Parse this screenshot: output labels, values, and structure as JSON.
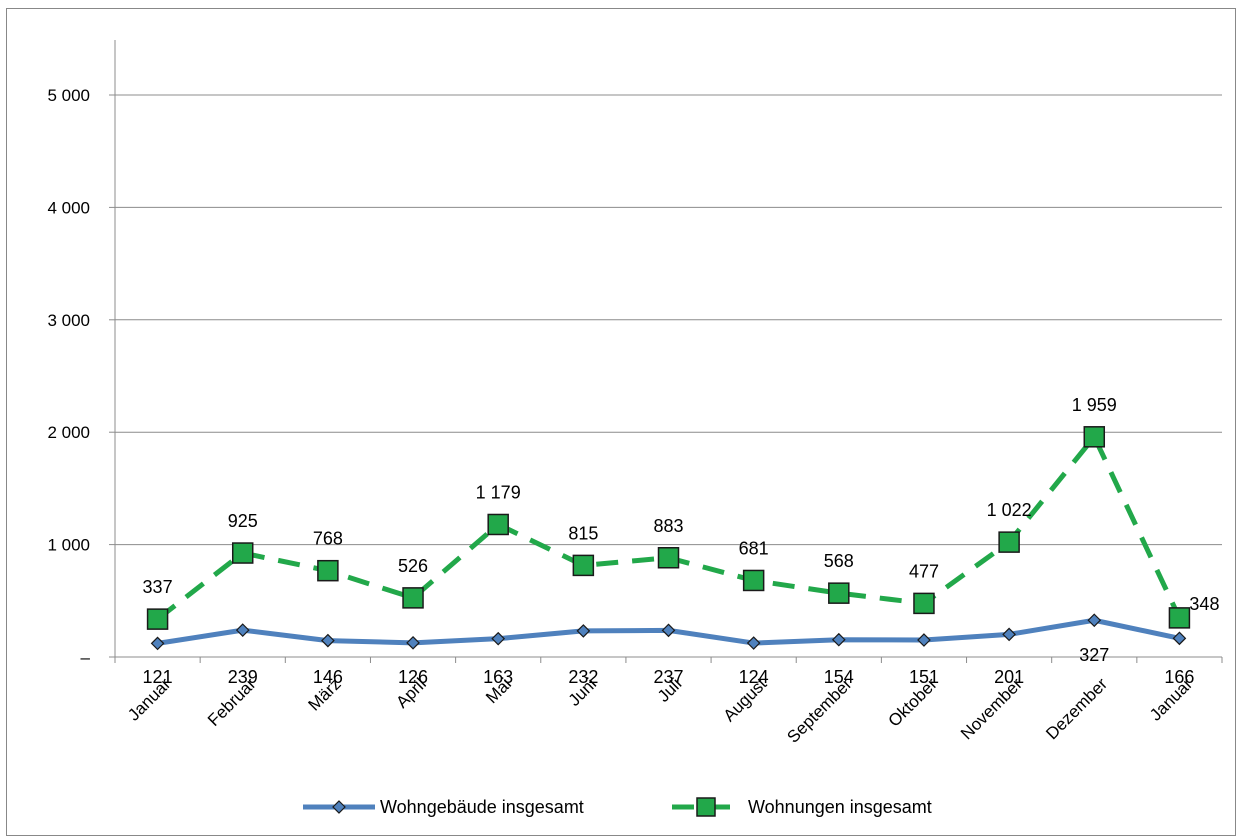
{
  "chart_data": {
    "type": "line",
    "categories": [
      "Januar",
      "Februar",
      "März",
      "April",
      "Mai",
      "Juni",
      "Juli",
      "August",
      "September",
      "Oktober",
      "November",
      "Dezember",
      "Januar"
    ],
    "series": [
      {
        "name": "Wohngebäude insgesamt",
        "values": [
          121,
          239,
          146,
          126,
          163,
          232,
          237,
          124,
          154,
          151,
          201,
          327,
          166
        ],
        "labels": [
          "121",
          "239",
          "146",
          "126",
          "163",
          "232",
          "237",
          "124",
          "154",
          "151",
          "201",
          "327",
          "166"
        ],
        "color": "#4f81bd",
        "marker": "diamond",
        "line_style": "solid"
      },
      {
        "name": "Wohnungen insgesamt",
        "values": [
          337,
          925,
          768,
          526,
          1179,
          815,
          883,
          681,
          568,
          477,
          1022,
          1959,
          348
        ],
        "labels": [
          "337",
          "925",
          "768",
          "526",
          "1 179",
          "815",
          "883",
          "681",
          "568",
          "477",
          "1 022",
          "1 959",
          "348"
        ],
        "color": "#22a84a",
        "marker": "square",
        "line_style": "dashed"
      }
    ],
    "y_ticks": [
      {
        "value": 0,
        "label": "–"
      },
      {
        "value": 1000,
        "label": "1 000"
      },
      {
        "value": 2000,
        "label": "2 000"
      },
      {
        "value": 3000,
        "label": "3 000"
      },
      {
        "value": 4000,
        "label": "4 000"
      },
      {
        "value": 5000,
        "label": "5 000"
      }
    ],
    "ylim": [
      0,
      5000
    ],
    "grid": true,
    "legend_position": "bottom"
  }
}
